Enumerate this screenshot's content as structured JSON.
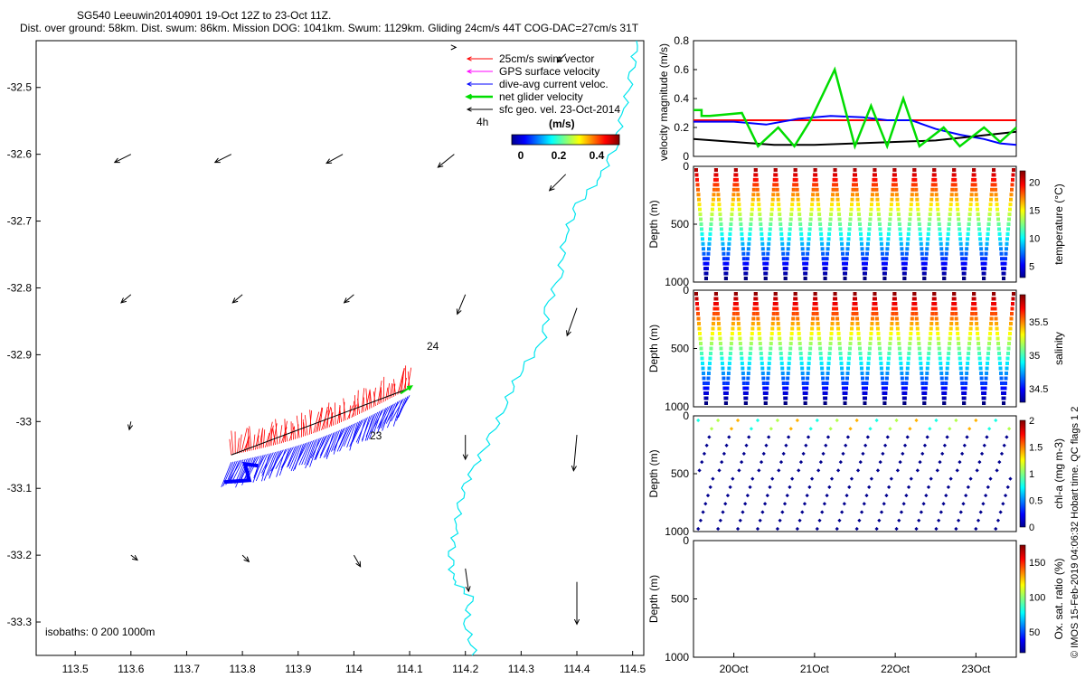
{
  "header": {
    "title_line1": "SG540 Leeuwin20140901 19-Oct 12Z to 23-Oct 11Z.",
    "title_line2": "Dist. over ground: 58km. Dist. swum: 86km. Mission DOG: 1041km. Swum: 1129km. Gliding 24cm/s 44T COG-DAC=27cm/s 31T"
  },
  "colors": {
    "swim": "#ff0000",
    "gps": "#ff00ff",
    "dac": "#0000ff",
    "net": "#00dd00",
    "geo": "#000000",
    "coast": "#00e5ee"
  },
  "chart_data": [
    {
      "type": "map",
      "x_ticks": [
        "113.5",
        "113.6",
        "113.7",
        "113.8",
        "113.9",
        "114",
        "114.1",
        "114.2",
        "114.3",
        "114.4",
        "114.5"
      ],
      "y_ticks": [
        "-32.5",
        "-32.6",
        "-32.7",
        "-32.8",
        "-32.9",
        "-33",
        "-33.1",
        "-33.2",
        "-33.3"
      ],
      "xlim": [
        113.43,
        114.52
      ],
      "ylim": [
        -33.35,
        -32.43
      ],
      "legend": [
        {
          "label": "25cm/s swim vector",
          "color": "#ff0000"
        },
        {
          "label": "GPS surface velocity",
          "color": "#ff00ff"
        },
        {
          "label": "dive-avg current veloc.",
          "color": "#0000ff"
        },
        {
          "label": "net glider velocity",
          "color": "#00dd00"
        },
        {
          "label": "sfc geo. vel. 23-Oct-2014",
          "color": "#000000"
        }
      ],
      "annotations": [
        "4h",
        "24",
        "23"
      ],
      "colorbar": {
        "label": "(m/s)",
        "ticks": [
          "0",
          "0.2",
          "0.4"
        ]
      },
      "isobath_label": "isobaths: 0   200  1000m",
      "geo_vectors": [
        {
          "lon": 113.6,
          "lat": -32.6,
          "u": -1.0,
          "v": -0.5
        },
        {
          "lon": 113.78,
          "lat": -32.6,
          "u": -1.0,
          "v": -0.5
        },
        {
          "lon": 113.98,
          "lat": -32.6,
          "u": -1.0,
          "v": -0.55
        },
        {
          "lon": 114.18,
          "lat": -32.6,
          "u": -1.0,
          "v": -0.8
        },
        {
          "lon": 114.38,
          "lat": -32.63,
          "u": -1.0,
          "v": -1.0
        },
        {
          "lon": 113.6,
          "lat": -32.81,
          "u": -0.6,
          "v": -0.5
        },
        {
          "lon": 113.8,
          "lat": -32.81,
          "u": -0.6,
          "v": -0.5
        },
        {
          "lon": 114.0,
          "lat": -32.81,
          "u": -0.6,
          "v": -0.5
        },
        {
          "lon": 114.2,
          "lat": -32.81,
          "u": -0.5,
          "v": -1.2
        },
        {
          "lon": 114.4,
          "lat": -32.83,
          "u": -0.6,
          "v": -1.7
        },
        {
          "lon": 113.6,
          "lat": -33.0,
          "u": -0.1,
          "v": -0.5
        },
        {
          "lon": 114.2,
          "lat": -33.02,
          "u": 0.0,
          "v": -1.5
        },
        {
          "lon": 114.4,
          "lat": -33.02,
          "u": -0.2,
          "v": -2.2
        },
        {
          "lon": 113.6,
          "lat": -33.2,
          "u": 0.4,
          "v": -0.3
        },
        {
          "lon": 113.8,
          "lat": -33.2,
          "u": 0.4,
          "v": -0.4
        },
        {
          "lon": 114.0,
          "lat": -33.2,
          "u": 0.4,
          "v": -0.7
        },
        {
          "lon": 114.2,
          "lat": -33.22,
          "u": 0.2,
          "v": -1.4
        },
        {
          "lon": 114.4,
          "lat": -33.24,
          "u": 0.0,
          "v": -2.6
        },
        {
          "lon": 114.18,
          "lat": -32.44,
          "u": 0.1,
          "v": 0.0
        },
        {
          "lon": 114.38,
          "lat": -32.45,
          "u": -0.5,
          "v": -0.5
        }
      ]
    },
    {
      "type": "line",
      "ylabel": "velocity magnitude (m/s)",
      "ylim": [
        0,
        0.8
      ],
      "y_ticks": [
        "0",
        "0.2",
        "0.4",
        "0.6",
        "0.8"
      ],
      "xlim": [
        19.5,
        23.5
      ],
      "series": [
        {
          "color": "#ff0000",
          "x": [
            19.5,
            23.5
          ],
          "y": [
            0.25,
            0.25
          ]
        },
        {
          "color": "#0000ff",
          "x": [
            19.5,
            19.7,
            20.0,
            20.4,
            20.8,
            21.0,
            21.2,
            21.6,
            21.9,
            22.2,
            22.5,
            22.8,
            23.1,
            23.3,
            23.5
          ],
          "y": [
            0.24,
            0.24,
            0.24,
            0.22,
            0.26,
            0.27,
            0.28,
            0.27,
            0.25,
            0.25,
            0.19,
            0.15,
            0.12,
            0.09,
            0.08
          ]
        },
        {
          "color": "#000000",
          "x": [
            19.5,
            20.0,
            20.5,
            21.0,
            21.5,
            22.0,
            22.5,
            23.0,
            23.5
          ],
          "y": [
            0.12,
            0.1,
            0.08,
            0.08,
            0.09,
            0.1,
            0.11,
            0.14,
            0.17
          ]
        },
        {
          "color": "#00dd00",
          "x": [
            19.5,
            19.6,
            19.6,
            19.7,
            19.9,
            19.9,
            20.1,
            20.1,
            20.3,
            20.3,
            20.55,
            20.55,
            20.75,
            20.75,
            20.95,
            20.95,
            21.25,
            21.25,
            21.5,
            21.5,
            21.7,
            21.7,
            21.9,
            21.9,
            22.1,
            22.1,
            22.3,
            22.3,
            22.6,
            22.6,
            22.8,
            22.8,
            23.1,
            23.1,
            23.3,
            23.3,
            23.5
          ],
          "y": [
            0.32,
            0.32,
            0.28,
            0.28,
            0.29,
            0.29,
            0.3,
            0.3,
            0.07,
            0.07,
            0.2,
            0.2,
            0.07,
            0.07,
            0.25,
            0.25,
            0.6,
            0.6,
            0.07,
            0.07,
            0.35,
            0.35,
            0.07,
            0.07,
            0.4,
            0.4,
            0.07,
            0.07,
            0.2,
            0.2,
            0.07,
            0.07,
            0.2,
            0.2,
            0.1,
            0.1,
            0.2
          ]
        }
      ]
    },
    {
      "type": "scatter",
      "ylabel": "Depth (m)",
      "y_ticks": [
        "0",
        "500",
        "1000"
      ],
      "cbar_label": "temperature (°C)",
      "cbar_ticks": [
        "5",
        "10",
        "15",
        "20"
      ],
      "clim": [
        3,
        22
      ],
      "dives": 16
    },
    {
      "type": "scatter",
      "ylabel": "Depth (m)",
      "y_ticks": [
        "0",
        "500",
        "1000"
      ],
      "cbar_label": "salinity",
      "cbar_ticks": [
        "34.5",
        "35",
        "35.5"
      ],
      "clim": [
        34.3,
        35.9
      ],
      "dives": 16
    },
    {
      "type": "scatter",
      "ylabel": "Depth (m)",
      "y_ticks": [
        "0",
        "500",
        "1000"
      ],
      "cbar_label": "chl-a (mg m-3)",
      "cbar_ticks": [
        "0",
        "0.5",
        "1",
        "1.5",
        "2"
      ],
      "clim": [
        0,
        2
      ],
      "dives": 16
    },
    {
      "type": "scatter",
      "ylabel": "Depth (m)",
      "y_ticks": [
        "0",
        "500",
        "1000"
      ],
      "cbar_label": "Ox. sat. ratio (%)",
      "cbar_ticks": [
        "50",
        "100",
        "150"
      ],
      "clim": [
        20,
        175
      ],
      "x_ticks": [
        "20Oct",
        "21Oct",
        "22Oct",
        "23Oct"
      ],
      "x_tick_values": [
        20,
        21,
        22,
        23
      ],
      "xlim": [
        19.5,
        23.5
      ]
    }
  ],
  "footer": {
    "credit": "© IMOS 15-Feb-2019 04:06:32 Hobart time. QC flags 1  2"
  }
}
